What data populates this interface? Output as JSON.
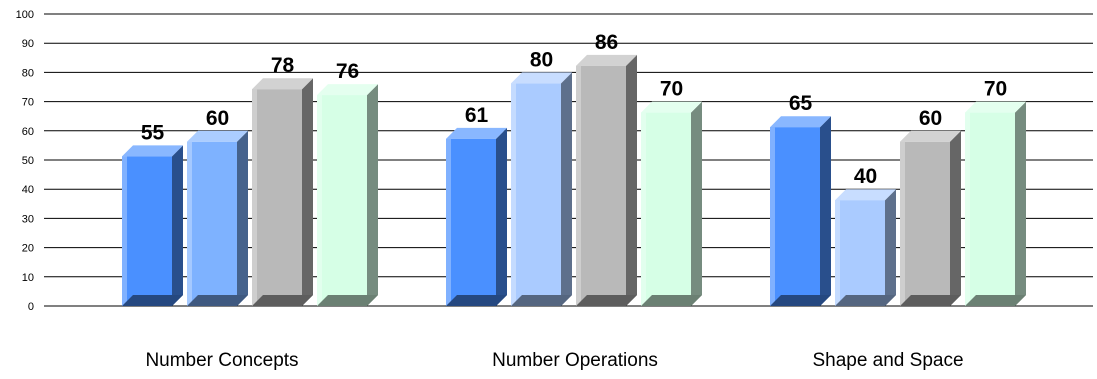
{
  "chart_data": {
    "type": "bar",
    "categories": [
      "Number Concepts",
      "Number Operations",
      "Shape and Space"
    ],
    "series": [
      {
        "values": [
          55,
          61,
          65
        ]
      },
      {
        "values": [
          60,
          80,
          40
        ]
      },
      {
        "values": [
          78,
          86,
          60
        ]
      },
      {
        "values": [
          76,
          70,
          70
        ]
      }
    ],
    "ylim": [
      0,
      100
    ],
    "yticks": [
      0,
      10,
      20,
      30,
      40,
      50,
      60,
      70,
      80,
      90,
      100
    ],
    "grid": true,
    "style": "3d",
    "bar_colors": [
      [
        "#4a90ff",
        "#4a90ff",
        "#4a90ff"
      ],
      [
        "#7eb2ff",
        "#aacbff",
        "#aacbff"
      ],
      [
        "#b9b9b9",
        "#b9b9b9",
        "#b9b9b9"
      ],
      [
        "#d6ffe6",
        "#d6ffe6",
        "#d6ffe6"
      ]
    ]
  }
}
